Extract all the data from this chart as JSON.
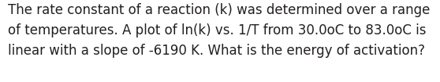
{
  "text_line1": "The rate constant of a reaction (k) was determined over a range",
  "text_line2": "of temperatures. A plot of ln(k) vs. 1/T from 30.0oC to 83.0oC is",
  "text_line3": "linear with a slope of -6190 K. What is the energy of activation?",
  "background_color": "#ffffff",
  "text_color": "#231f20",
  "font_size": 12.0,
  "fig_width": 5.58,
  "fig_height": 1.05,
  "dpi": 100
}
